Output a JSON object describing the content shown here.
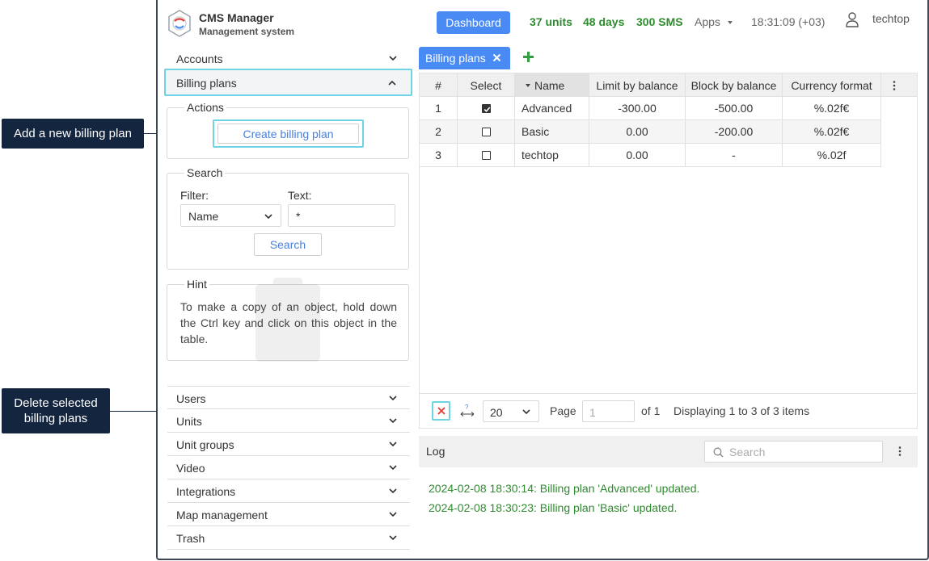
{
  "callouts": {
    "add": "Add a new billing plan",
    "delete": "Delete selected billing plans"
  },
  "header": {
    "title": "CMS Manager",
    "subtitle": "Management system",
    "dashboard": "Dashboard",
    "units": "37 units",
    "days": "48 days",
    "sms": "300 SMS",
    "apps": "Apps",
    "time": "18:31:09 (+03)",
    "user": "techtop"
  },
  "sidebar": {
    "accounts": "Accounts",
    "billing_plans": "Billing plans",
    "actions": {
      "legend": "Actions",
      "create": "Create billing plan"
    },
    "search": {
      "legend": "Search",
      "filter_label": "Filter:",
      "filter_value": "Name",
      "text_label": "Text:",
      "text_value": "*",
      "button": "Search"
    },
    "hint": {
      "legend": "Hint",
      "text": "To make a copy of an object, hold down the Ctrl key and click on this object in the table."
    },
    "items": [
      "Users",
      "Units",
      "Unit groups",
      "Video",
      "Integrations",
      "Map management",
      "Trash"
    ]
  },
  "tab": {
    "label": "Billing plans"
  },
  "table": {
    "columns": [
      "#",
      "Select",
      "Name",
      "Limit by balance",
      "Block by balance",
      "Currency format"
    ],
    "rows": [
      {
        "num": "1",
        "checked": true,
        "name": "Advanced",
        "limit": "-300.00",
        "block": "-500.00",
        "currency": "%.02f€"
      },
      {
        "num": "2",
        "checked": false,
        "name": "Basic",
        "limit": "0.00",
        "block": "-200.00",
        "currency": "%.02f€"
      },
      {
        "num": "3",
        "checked": false,
        "name": "techtop",
        "limit": "0.00",
        "block": "-",
        "currency": "%.02f"
      }
    ]
  },
  "pager": {
    "per_page": "20",
    "page_label": "Page",
    "page_value": "1",
    "of": "of 1",
    "displaying": "Displaying 1 to 3 of 3 items"
  },
  "log": {
    "title": "Log",
    "search_placeholder": "Search",
    "entries": [
      "2024-02-08 18:30:14: Billing plan 'Advanced' updated.",
      "2024-02-08 18:30:23: Billing plan 'Basic' updated."
    ]
  },
  "colors": {
    "accent": "#4a8af4",
    "highlight": "#6fd3e6",
    "callout": "#13253f",
    "success": "#2e8b2e",
    "danger": "#e53935"
  }
}
